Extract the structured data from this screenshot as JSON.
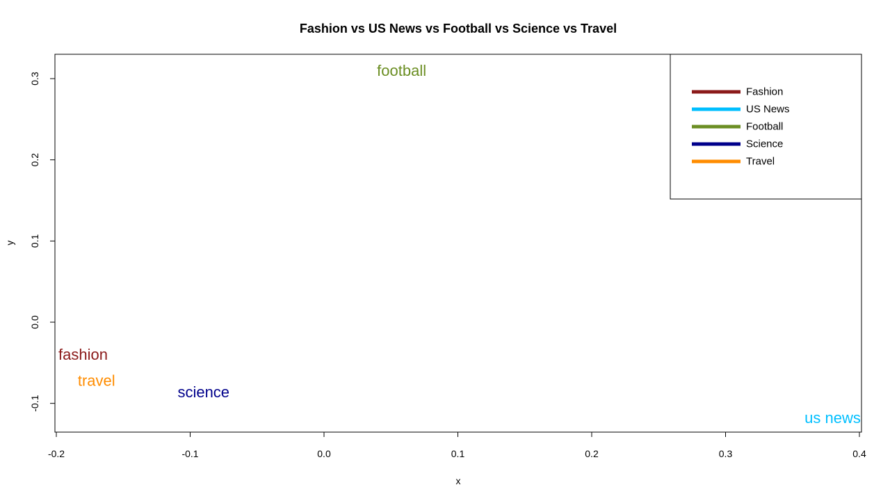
{
  "chart_data": {
    "type": "scatter",
    "title": "Fashion vs US News vs Football vs Science vs Travel",
    "xlabel": "x",
    "ylabel": "y",
    "xlim": [
      -0.2,
      0.4
    ],
    "ylim": [
      -0.13,
      0.33
    ],
    "xticks": [
      -0.2,
      -0.1,
      0.0,
      0.1,
      0.2,
      0.3,
      0.4
    ],
    "xtick_labels": [
      "-0.2",
      "-0.1",
      "0.0",
      "0.1",
      "0.2",
      "0.3",
      "0.4"
    ],
    "yticks": [
      -0.1,
      0.0,
      0.1,
      0.2,
      0.3
    ],
    "ytick_labels": [
      "-0.1",
      "0.0",
      "0.1",
      "0.2",
      "0.3"
    ],
    "grid": false,
    "legend_position": "top-right",
    "points": [
      {
        "label": "fashion",
        "x": -0.18,
        "y": -0.04,
        "color": "#8B1A1A"
      },
      {
        "label": "travel",
        "x": -0.17,
        "y": -0.072,
        "color": "#FF8C00"
      },
      {
        "label": "science",
        "x": -0.09,
        "y": -0.086,
        "color": "#00008B"
      },
      {
        "label": "football",
        "x": 0.058,
        "y": 0.31,
        "color": "#6B8E23"
      },
      {
        "label": "us news",
        "x": 0.38,
        "y": -0.118,
        "color": "#00BFFF"
      }
    ],
    "legend": [
      {
        "name": "Fashion",
        "color": "#8B1A1A"
      },
      {
        "name": "US News",
        "color": "#00BFFF"
      },
      {
        "name": "Football",
        "color": "#6B8E23"
      },
      {
        "name": "Science",
        "color": "#00008B"
      },
      {
        "name": "Travel",
        "color": "#FF8C00"
      }
    ]
  }
}
